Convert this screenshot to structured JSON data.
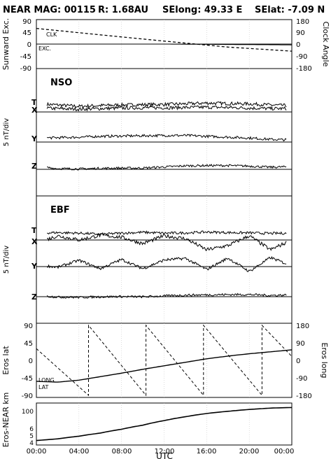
{
  "header": {
    "title": "NEAR MAG: 00115",
    "radius": "R: 1.68AU",
    "selong": "SElong:   49.33 E",
    "selat": "SElat:   -7.09 N"
  },
  "chart_data": [
    {
      "type": "line",
      "panel": "sunward-clock",
      "ylabel_left": "Sunward Exc.",
      "ylabel_right": "Clock Angle",
      "yticks_left": [
        "90",
        "45",
        "0",
        "-45",
        "-90"
      ],
      "yticks_right": [
        "180",
        "90",
        "0",
        "-90",
        "-180"
      ],
      "ylim_left": [
        -90,
        90
      ],
      "ylim_right": [
        -180,
        180
      ],
      "series": [
        {
          "name": "CLK",
          "style": "dashed",
          "x": [
            0,
            6,
            12,
            18,
            24
          ],
          "y": [
            115,
            68,
            22,
            -22,
            -52
          ]
        },
        {
          "name": "EXC.",
          "style": "solid",
          "x": [
            0,
            12,
            16,
            24
          ],
          "y": [
            0,
            0,
            -1,
            -3
          ]
        }
      ]
    },
    {
      "type": "line",
      "panel": "NSO",
      "label": "NSO",
      "ylabel": "5 nT/div",
      "series": [
        {
          "name": "T",
          "baseline": "T",
          "x": [
            0,
            2,
            4,
            6,
            8,
            10,
            12,
            14,
            16,
            18,
            20,
            22,
            24
          ],
          "y": [
            1,
            0.5,
            0,
            0.3,
            0.5,
            0.6,
            0.7,
            0.9,
            1.2,
            1.0,
            0.9,
            0.5,
            0.2
          ]
        },
        {
          "name": "X",
          "baseline": "X",
          "x": [
            0,
            2,
            4,
            6,
            8,
            10,
            12,
            14,
            16,
            18,
            20,
            22,
            24
          ],
          "y": [
            0.5,
            0.2,
            0,
            0.2,
            0.4,
            0.5,
            0.5,
            0.6,
            0.7,
            0.6,
            0.4,
            0.2,
            0.2
          ]
        },
        {
          "name": "Y",
          "baseline": "Y",
          "x": [
            0,
            2,
            4,
            6,
            8,
            10,
            12,
            14,
            16,
            18,
            20,
            22,
            24
          ],
          "y": [
            0.2,
            0.3,
            0.5,
            0.8,
            0.9,
            1.0,
            1.1,
            1.1,
            0.8,
            0.5,
            0.2,
            -0.3,
            -0.5
          ]
        },
        {
          "name": "Z",
          "baseline": "Z",
          "x": [
            0,
            2,
            4,
            6,
            8,
            10,
            12,
            14,
            16,
            18,
            20,
            22,
            24
          ],
          "y": [
            0.3,
            -0.5,
            -0.6,
            -0.4,
            -0.3,
            -0.3,
            0.1,
            0.5,
            0.6,
            0.6,
            0.4,
            0,
            0.2
          ]
        }
      ]
    },
    {
      "type": "line",
      "panel": "EBF",
      "label": "EBF",
      "ylabel": "5 nT/div",
      "series": [
        {
          "name": "T",
          "baseline": "T",
          "x": [
            0,
            2,
            4,
            6,
            8,
            10,
            12,
            14,
            16,
            18,
            20,
            22,
            24
          ],
          "y": [
            0.2,
            0.4,
            0.2,
            -0.2,
            0.2,
            0.5,
            0.2,
            0.3,
            0.6,
            0.4,
            0.3,
            0.1,
            0.2
          ]
        },
        {
          "name": "X",
          "baseline": "X",
          "x": [
            0,
            2,
            4,
            6,
            8,
            10,
            12,
            14,
            16,
            18,
            20,
            22,
            24
          ],
          "y": [
            -0.5,
            2,
            0.5,
            2.2,
            1.5,
            -0.8,
            2,
            1,
            -3,
            -1.5,
            2,
            -3,
            0.5
          ]
        },
        {
          "name": "Y",
          "baseline": "Y",
          "x": [
            0,
            2,
            4,
            6,
            8,
            10,
            12,
            14,
            16,
            18,
            20,
            22,
            24
          ],
          "y": [
            0,
            -1,
            1.5,
            -1.5,
            1.8,
            -1.5,
            1.6,
            2.2,
            -1.8,
            2.3,
            -2.5,
            2.5,
            -0.5
          ]
        },
        {
          "name": "Z",
          "baseline": "Z",
          "x": [
            0,
            2,
            4,
            6,
            8,
            10,
            12,
            14,
            16,
            18,
            20,
            22,
            24
          ],
          "y": [
            0.2,
            -0.4,
            -0.5,
            -0.3,
            -0.2,
            -0.3,
            0,
            0.3,
            0.4,
            0.5,
            0.5,
            0.2,
            0.4
          ]
        }
      ]
    },
    {
      "type": "line",
      "panel": "eros-lat-long",
      "ylabel_left": "Eros lat",
      "ylabel_right": "Eros long",
      "yticks_left": [
        "90",
        "45",
        "0",
        "-45",
        "-90"
      ],
      "yticks_right": [
        "180",
        "90",
        "0",
        "-90",
        "-180"
      ],
      "ylim_left": [
        -90,
        90
      ],
      "ylim_right": [
        -180,
        180
      ],
      "series": [
        {
          "name": "LONG",
          "style": "dashed",
          "x": [
            0,
            4.9,
            4.9,
            10.3,
            10.3,
            15.7,
            15.7,
            21.2,
            21.2,
            24
          ],
          "y": [
            60,
            -180,
            180,
            -180,
            180,
            -180,
            180,
            -180,
            180,
            20
          ]
        },
        {
          "name": "LAT",
          "style": "solid",
          "x": [
            0,
            2,
            4,
            6,
            8,
            10,
            12,
            14,
            16,
            18,
            20,
            22,
            24
          ],
          "y": [
            -54,
            -56,
            -51,
            -42,
            -33,
            -23,
            -14,
            -5,
            4,
            11,
            17,
            22,
            27
          ]
        }
      ]
    },
    {
      "type": "line",
      "panel": "range",
      "ylabel": "Eros-NEAR km",
      "yscale": "log",
      "yticks": [
        "100",
        "6",
        "5",
        "4"
      ],
      "series": [
        {
          "name": "range",
          "x": [
            0,
            2,
            4,
            6,
            8,
            10,
            12,
            14,
            16,
            18,
            20,
            22,
            24
          ],
          "y": [
            5.2,
            6.0,
            7.6,
            10,
            14,
            20,
            30,
            42,
            56,
            68,
            80,
            90,
            95
          ]
        }
      ]
    }
  ],
  "xaxis": {
    "label": "UTC",
    "ticks": [
      "00:00",
      "04:00",
      "08:00",
      "12:00",
      "16:00",
      "20:00",
      "00:00"
    ],
    "xlim": [
      0,
      24
    ]
  }
}
